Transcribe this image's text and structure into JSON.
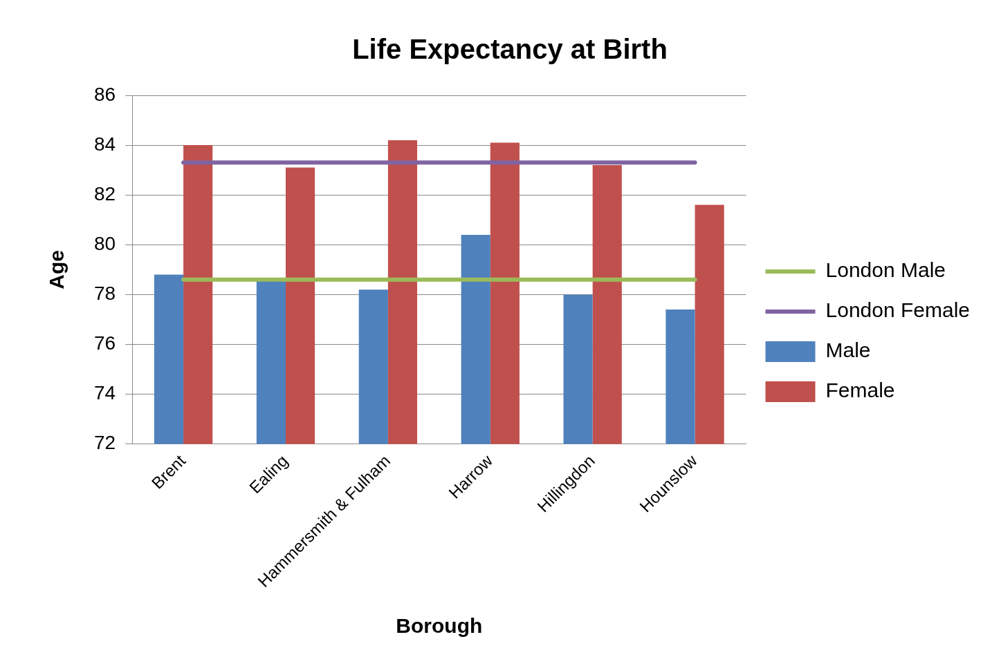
{
  "chart_data": {
    "type": "bar",
    "title": "Life Expectancy at Birth",
    "xlabel": "Borough",
    "ylabel": "Age",
    "categories": [
      "Brent",
      "Ealing",
      "Hammersmith & Fulham",
      "Harrow",
      "Hillingdon",
      "Hounslow"
    ],
    "series": [
      {
        "name": "Male",
        "color": "#4f81bd",
        "values": [
          78.8,
          78.6,
          78.2,
          80.4,
          78.0,
          77.4
        ]
      },
      {
        "name": "Female",
        "color": "#c0504d",
        "values": [
          84.0,
          83.1,
          84.2,
          84.1,
          83.2,
          81.6
        ]
      },
      {
        "name": "London Male",
        "type": "line",
        "color": "#9bbb59",
        "values": [
          78.6,
          78.6,
          78.6,
          78.6,
          78.6,
          78.6
        ]
      },
      {
        "name": "London Female",
        "type": "line",
        "color": "#8064a2",
        "values": [
          83.3,
          83.3,
          83.3,
          83.3,
          83.3,
          83.3
        ]
      }
    ],
    "ylim": [
      72,
      86
    ],
    "yticks": [
      72,
      74,
      76,
      78,
      80,
      82,
      84,
      86
    ],
    "grid": "y",
    "legend": "right",
    "marker": "none"
  }
}
